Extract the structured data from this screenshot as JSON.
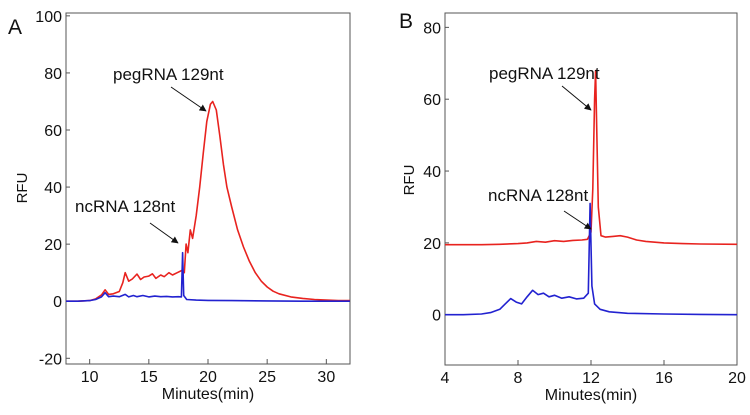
{
  "chart_data": [
    {
      "panel_label": "A",
      "type": "line",
      "xlabel": "Minutes(min)",
      "ylabel": "RFU",
      "xlim": [
        8,
        32
      ],
      "ylim": [
        -22,
        101
      ],
      "xticks": [
        10,
        15,
        20,
        25,
        30
      ],
      "yticks": [
        -20,
        0,
        20,
        40,
        60,
        80,
        100
      ],
      "grid": false,
      "annotations": [
        {
          "text": "pegRNA 129nt",
          "x": 20.4,
          "y": 70
        },
        {
          "text": "ncRNA 128nt",
          "x": 17.9,
          "y": 17
        }
      ],
      "series": [
        {
          "color": "#e8231f",
          "points": [
            [
              8,
              0
            ],
            [
              9,
              0
            ],
            [
              10,
              0.2
            ],
            [
              10.5,
              0.8
            ],
            [
              11,
              2.2
            ],
            [
              11.3,
              4
            ],
            [
              11.6,
              2.4
            ],
            [
              12,
              2.6
            ],
            [
              12.5,
              3.4
            ],
            [
              12.8,
              6.5
            ],
            [
              13,
              10
            ],
            [
              13.3,
              7
            ],
            [
              13.6,
              7.8
            ],
            [
              14,
              9.5
            ],
            [
              14.3,
              7.6
            ],
            [
              14.6,
              8.5
            ],
            [
              15,
              8.8
            ],
            [
              15.3,
              9.6
            ],
            [
              15.6,
              8
            ],
            [
              16,
              9.2
            ],
            [
              16.3,
              8.6
            ],
            [
              16.7,
              10
            ],
            [
              17,
              9.2
            ],
            [
              17.4,
              10
            ],
            [
              17.8,
              10.8
            ],
            [
              18,
              10
            ],
            [
              18.15,
              20
            ],
            [
              18.3,
              17
            ],
            [
              18.5,
              25
            ],
            [
              18.7,
              22
            ],
            [
              19,
              30
            ],
            [
              19.3,
              40
            ],
            [
              19.6,
              52
            ],
            [
              19.9,
              63
            ],
            [
              20.2,
              69
            ],
            [
              20.4,
              70
            ],
            [
              20.7,
              67
            ],
            [
              21,
              58
            ],
            [
              21.3,
              48
            ],
            [
              21.6,
              40
            ],
            [
              22,
              33
            ],
            [
              22.5,
              25
            ],
            [
              23,
              19
            ],
            [
              23.5,
              14
            ],
            [
              24,
              10
            ],
            [
              24.5,
              7
            ],
            [
              25,
              5
            ],
            [
              25.5,
              3.5
            ],
            [
              26,
              2.6
            ],
            [
              27,
              1.5
            ],
            [
              28,
              1
            ],
            [
              29,
              0.6
            ],
            [
              30,
              0.4
            ],
            [
              31,
              0.2
            ],
            [
              32,
              0.2
            ]
          ]
        },
        {
          "color": "#2222d0",
          "points": [
            [
              8,
              0
            ],
            [
              9,
              0
            ],
            [
              10,
              0.2
            ],
            [
              10.5,
              0.6
            ],
            [
              11,
              1.5
            ],
            [
              11.3,
              3
            ],
            [
              11.6,
              1.6
            ],
            [
              12,
              1.8
            ],
            [
              12.5,
              1.6
            ],
            [
              13,
              2.4
            ],
            [
              13.3,
              1.5
            ],
            [
              13.7,
              2
            ],
            [
              14,
              1.6
            ],
            [
              14.5,
              2
            ],
            [
              15,
              1.5
            ],
            [
              15.5,
              1.8
            ],
            [
              16,
              1.6
            ],
            [
              16.5,
              1.7
            ],
            [
              17,
              1.5
            ],
            [
              17.5,
              1.6
            ],
            [
              17.75,
              1.5
            ],
            [
              17.85,
              17
            ],
            [
              17.95,
              2
            ],
            [
              18.2,
              0.6
            ],
            [
              19,
              0.4
            ],
            [
              20,
              0.3
            ],
            [
              22,
              0.2
            ],
            [
              25,
              0.1
            ],
            [
              28,
              0
            ],
            [
              32,
              0
            ]
          ]
        }
      ]
    },
    {
      "panel_label": "B",
      "type": "line",
      "xlabel": "Minutes(min)",
      "ylabel": "RFU",
      "xlim": [
        4,
        20
      ],
      "ylim": [
        -14,
        84
      ],
      "xticks": [
        4,
        8,
        12,
        16,
        20
      ],
      "yticks": [
        0,
        20,
        40,
        60,
        80
      ],
      "grid": false,
      "annotations": [
        {
          "text": "pegRNA 129nt",
          "x": 12.2,
          "y": 68
        },
        {
          "text": "ncRNA 128nt",
          "x": 11.9,
          "y": 31
        }
      ],
      "series": [
        {
          "color": "#e8231f",
          "points": [
            [
              4,
              19.5
            ],
            [
              5,
              19.5
            ],
            [
              6,
              19.5
            ],
            [
              7,
              19.6
            ],
            [
              8,
              19.8
            ],
            [
              8.5,
              20
            ],
            [
              9,
              20.4
            ],
            [
              9.5,
              20.2
            ],
            [
              10,
              20.6
            ],
            [
              10.5,
              20.4
            ],
            [
              11,
              20.7
            ],
            [
              11.5,
              20.8
            ],
            [
              11.8,
              21
            ],
            [
              12,
              23
            ],
            [
              12.1,
              35
            ],
            [
              12.2,
              60
            ],
            [
              12.25,
              68
            ],
            [
              12.3,
              55
            ],
            [
              12.4,
              30
            ],
            [
              12.55,
              22
            ],
            [
              12.8,
              21.6
            ],
            [
              13.2,
              21.8
            ],
            [
              13.6,
              22
            ],
            [
              14,
              21.6
            ],
            [
              14.5,
              20.8
            ],
            [
              15,
              20.4
            ],
            [
              16,
              20
            ],
            [
              17,
              19.8
            ],
            [
              18,
              19.7
            ],
            [
              20,
              19.6
            ]
          ]
        },
        {
          "color": "#2222d0",
          "points": [
            [
              4,
              0
            ],
            [
              5,
              0
            ],
            [
              6,
              0.2
            ],
            [
              6.5,
              0.6
            ],
            [
              7,
              1.5
            ],
            [
              7.3,
              3
            ],
            [
              7.6,
              4.5
            ],
            [
              7.9,
              3.5
            ],
            [
              8.2,
              3
            ],
            [
              8.5,
              5
            ],
            [
              8.8,
              6.8
            ],
            [
              9.1,
              5.6
            ],
            [
              9.4,
              6
            ],
            [
              9.7,
              5
            ],
            [
              10,
              5.4
            ],
            [
              10.4,
              4.6
            ],
            [
              10.8,
              5
            ],
            [
              11.2,
              4.4
            ],
            [
              11.6,
              4.6
            ],
            [
              11.85,
              6
            ],
            [
              11.95,
              31
            ],
            [
              12.05,
              8
            ],
            [
              12.2,
              3
            ],
            [
              12.5,
              1.5
            ],
            [
              13,
              0.8
            ],
            [
              14,
              0.4
            ],
            [
              16,
              0.2
            ],
            [
              18,
              0.1
            ],
            [
              20,
              0
            ]
          ]
        }
      ]
    }
  ]
}
